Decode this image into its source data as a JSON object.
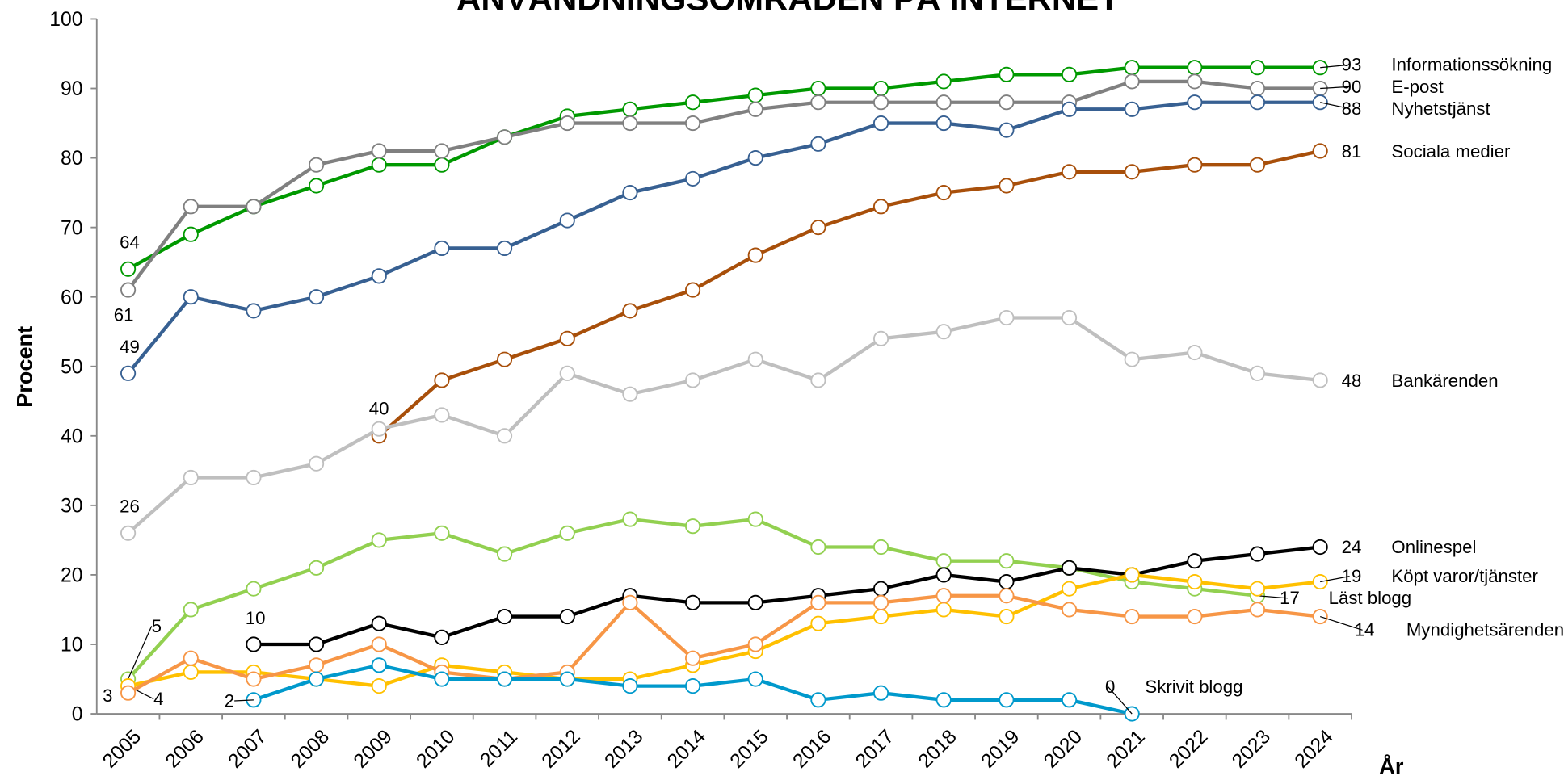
{
  "chart_data": {
    "type": "line",
    "title": "ANVÄNDNINGSOMRÅDEN PÅ INTERNET",
    "y_label": "Procent",
    "x_label": "År",
    "categories": [
      "2005",
      "2006",
      "2007",
      "2008",
      "2009",
      "2010",
      "2011",
      "2012",
      "2013",
      "2014",
      "2015",
      "2016",
      "2017",
      "2018",
      "2019",
      "2020",
      "2021",
      "2022",
      "2023",
      "2024"
    ],
    "ylim": [
      0,
      100
    ],
    "yticks": [
      0,
      10,
      20,
      30,
      40,
      50,
      60,
      70,
      80,
      90,
      100
    ],
    "grid": false,
    "series": [
      {
        "name": "Informationssökning",
        "color": "#009900",
        "values": [
          64,
          69,
          73,
          76,
          79,
          79,
          83,
          86,
          87,
          88,
          89,
          90,
          90,
          91,
          92,
          92,
          93,
          93,
          93,
          93
        ]
      },
      {
        "name": "E-post",
        "color": "#808080",
        "values": [
          61,
          73,
          73,
          79,
          81,
          81,
          83,
          85,
          85,
          85,
          87,
          88,
          88,
          88,
          88,
          88,
          91,
          91,
          90,
          90
        ]
      },
      {
        "name": "Nyhetstjänst",
        "color": "#376092",
        "values": [
          49,
          60,
          58,
          60,
          63,
          67,
          67,
          71,
          75,
          77,
          80,
          82,
          85,
          85,
          84,
          87,
          87,
          88,
          88,
          88
        ]
      },
      {
        "name": "Sociala medier",
        "color": "#a84f0a",
        "values": [
          null,
          null,
          null,
          null,
          40,
          48,
          51,
          54,
          58,
          61,
          66,
          70,
          73,
          75,
          76,
          78,
          78,
          79,
          79,
          81
        ]
      },
      {
        "name": "Bankärenden",
        "color": "#bfbfbf",
        "values": [
          26,
          34,
          34,
          36,
          41,
          43,
          40,
          49,
          46,
          48,
          51,
          48,
          54,
          55,
          57,
          57,
          51,
          52,
          49,
          48
        ]
      },
      {
        "name": "Läst blogg",
        "color": "#92d050",
        "values": [
          5,
          15,
          18,
          21,
          25,
          26,
          23,
          26,
          28,
          27,
          28,
          24,
          24,
          22,
          22,
          21,
          19,
          18,
          17,
          null
        ]
      },
      {
        "name": "Onlinespel",
        "color": "#000000",
        "values": [
          null,
          null,
          10,
          10,
          13,
          11,
          14,
          14,
          17,
          16,
          16,
          17,
          18,
          20,
          19,
          21,
          20,
          22,
          23,
          24
        ]
      },
      {
        "name": "Köpt varor/tjänster",
        "color": "#ffc000",
        "values": [
          4,
          6,
          6,
          5,
          4,
          7,
          6,
          5,
          5,
          7,
          9,
          13,
          14,
          15,
          14,
          18,
          20,
          19,
          18,
          19
        ]
      },
      {
        "name": "Myndighetsärenden",
        "color": "#f79646",
        "values": [
          3,
          8,
          5,
          7,
          10,
          6,
          5,
          6,
          16,
          8,
          10,
          16,
          16,
          17,
          17,
          15,
          14,
          14,
          15,
          14
        ]
      },
      {
        "name": "Skrivit blogg",
        "color": "#0099cc",
        "values": [
          null,
          null,
          2,
          5,
          7,
          5,
          5,
          5,
          4,
          4,
          5,
          2,
          3,
          2,
          2,
          2,
          0,
          null,
          null,
          null
        ]
      }
    ]
  }
}
